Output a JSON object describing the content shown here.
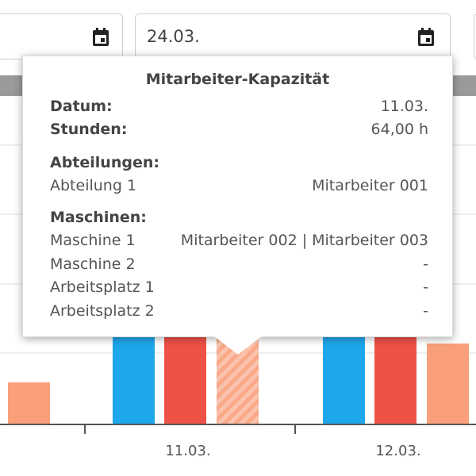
{
  "date_input": "24.03.",
  "chart": {
    "categories": [
      "11.03.",
      "12.03."
    ]
  },
  "tooltip": {
    "title": "Mitarbeiter-Kapazität",
    "summary": [
      [
        "Datum:",
        "11.03."
      ],
      [
        "Stunden:",
        "64,00 h"
      ]
    ],
    "departments": {
      "heading": "Abteilungen:",
      "rows": [
        [
          "Abteilung 1",
          "Mitarbeiter 001"
        ]
      ]
    },
    "machines": {
      "heading": "Maschinen:",
      "rows": [
        [
          "Maschine 1",
          "Mitarbeiter 002 | Mitarbeiter 003"
        ],
        [
          "Maschine 2",
          "-"
        ],
        [
          "Arbeitsplatz 1",
          "-"
        ],
        [
          "Arbeitsplatz 2",
          "-"
        ]
      ]
    }
  }
}
